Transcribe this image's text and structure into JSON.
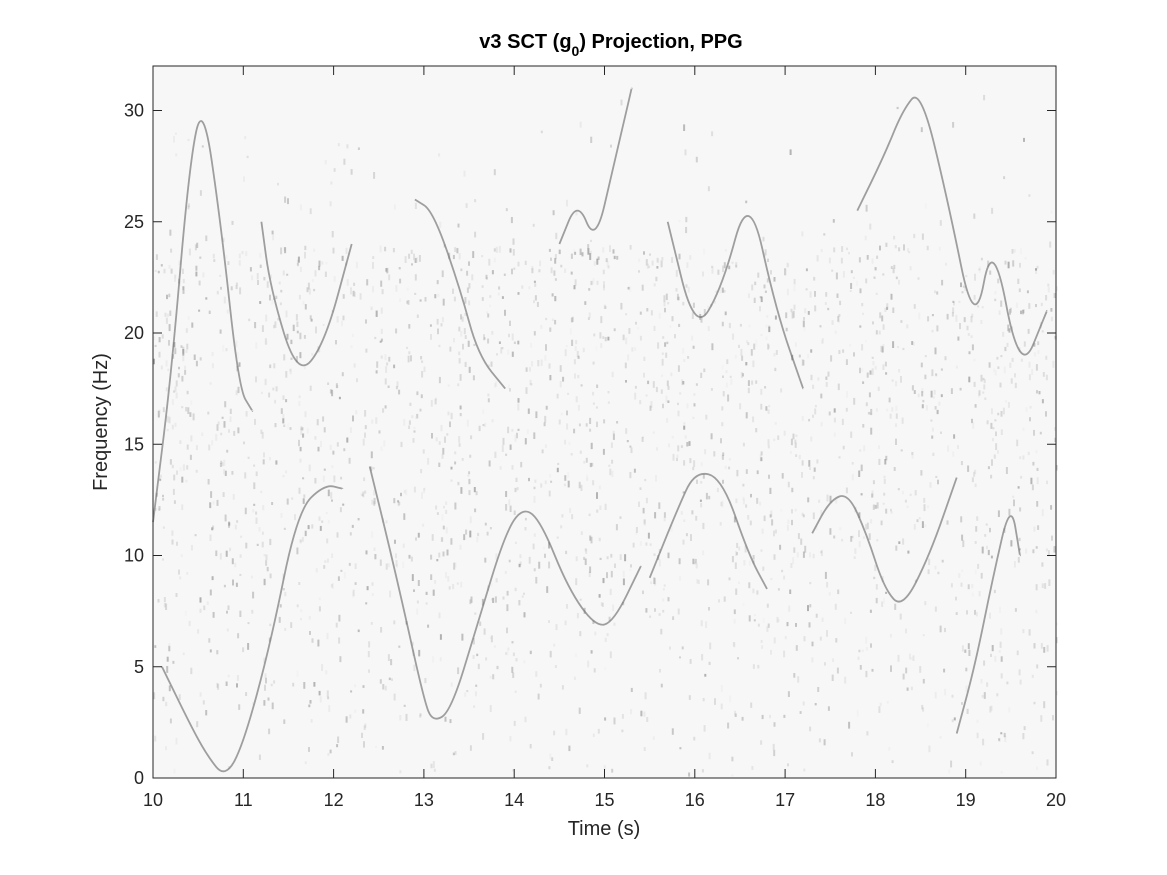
{
  "chart_data": {
    "type": "heatmap",
    "title_main": "v3 SCT (g",
    "title_sub": "0",
    "title_rest": ") Projection, PPG",
    "xlabel": "Time (s)",
    "ylabel": "Frequency (Hz)",
    "xlim": [
      10,
      20
    ],
    "ylim": [
      0,
      32
    ],
    "xticks": [
      10,
      11,
      12,
      13,
      14,
      15,
      16,
      17,
      18,
      19,
      20
    ],
    "yticks": [
      0,
      5,
      10,
      15,
      20,
      25,
      30
    ],
    "colormap": "gray-reversed",
    "grid": false,
    "ridges": [
      {
        "points": [
          [
            10.0,
            11.5
          ],
          [
            10.2,
            18.0
          ],
          [
            10.4,
            27.5
          ],
          [
            10.55,
            30.5
          ],
          [
            10.75,
            25.0
          ],
          [
            10.95,
            17.5
          ],
          [
            11.1,
            16.5
          ]
        ]
      },
      {
        "points": [
          [
            10.1,
            5.0
          ],
          [
            10.4,
            2.5
          ],
          [
            10.6,
            1.0
          ],
          [
            10.8,
            0.0
          ],
          [
            11.0,
            1.5
          ],
          [
            11.3,
            6.0
          ],
          [
            11.6,
            12.0
          ],
          [
            11.9,
            13.2
          ],
          [
            12.1,
            13.0
          ]
        ]
      },
      {
        "points": [
          [
            11.2,
            25.0
          ],
          [
            11.3,
            22.0
          ],
          [
            11.6,
            18.0
          ],
          [
            11.9,
            19.5
          ],
          [
            12.2,
            24.0
          ]
        ]
      },
      {
        "points": [
          [
            12.4,
            14.0
          ],
          [
            12.7,
            9.0
          ],
          [
            13.0,
            3.5
          ],
          [
            13.1,
            2.5
          ],
          [
            13.3,
            3.0
          ],
          [
            13.6,
            7.0
          ],
          [
            13.9,
            11.0
          ],
          [
            14.1,
            12.2
          ],
          [
            14.3,
            11.5
          ],
          [
            14.6,
            8.5
          ],
          [
            14.9,
            6.8
          ],
          [
            15.1,
            7.0
          ],
          [
            15.4,
            9.5
          ]
        ]
      },
      {
        "points": [
          [
            12.9,
            26.0
          ],
          [
            13.1,
            25.5
          ],
          [
            13.4,
            22.0
          ],
          [
            13.6,
            19.0
          ],
          [
            13.9,
            17.5
          ]
        ]
      },
      {
        "points": [
          [
            14.5,
            24.0
          ],
          [
            14.7,
            26.0
          ],
          [
            14.9,
            24.0
          ],
          [
            15.1,
            27.5
          ],
          [
            15.3,
            31.0
          ]
        ]
      },
      {
        "points": [
          [
            15.5,
            9.0
          ],
          [
            15.8,
            12.0
          ],
          [
            16.0,
            13.8
          ],
          [
            16.3,
            13.5
          ],
          [
            16.6,
            10.0
          ],
          [
            16.8,
            8.5
          ]
        ]
      },
      {
        "points": [
          [
            15.7,
            25.0
          ],
          [
            16.0,
            20.0
          ],
          [
            16.3,
            22.0
          ],
          [
            16.6,
            26.5
          ],
          [
            16.9,
            21.0
          ],
          [
            17.2,
            17.5
          ]
        ]
      },
      {
        "points": [
          [
            17.3,
            11.0
          ],
          [
            17.5,
            12.5
          ],
          [
            17.7,
            12.8
          ],
          [
            17.9,
            11.0
          ],
          [
            18.1,
            8.5
          ],
          [
            18.3,
            7.6
          ],
          [
            18.6,
            10.0
          ],
          [
            18.9,
            13.5
          ]
        ]
      },
      {
        "points": [
          [
            17.8,
            25.5
          ],
          [
            18.1,
            28.0
          ],
          [
            18.3,
            30.0
          ],
          [
            18.5,
            31.0
          ],
          [
            18.8,
            26.0
          ],
          [
            19.1,
            20.0
          ],
          [
            19.3,
            24.5
          ],
          [
            19.6,
            18.0
          ],
          [
            19.9,
            21.0
          ]
        ]
      },
      {
        "points": [
          [
            18.9,
            2.0
          ],
          [
            19.1,
            5.0
          ],
          [
            19.3,
            9.0
          ],
          [
            19.5,
            12.5
          ],
          [
            19.6,
            10.0
          ]
        ]
      }
    ]
  }
}
